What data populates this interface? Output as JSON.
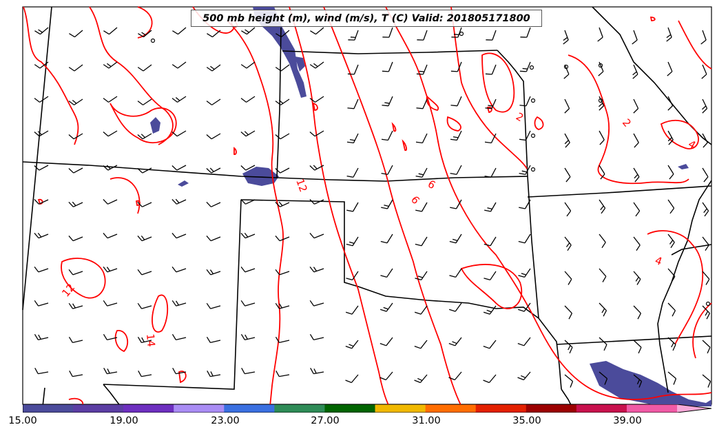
{
  "title": "500 mb height (m), wind (m/s), T (C) Valid: 201805171800",
  "colors": {
    "temperature_contour": "#ff0000",
    "state_borders": "#000000",
    "wind_barbs": "#000000",
    "wind_fill": "#4b4b9b"
  },
  "contour_labels": [
    "0",
    "2",
    "2",
    "4",
    "4",
    "6",
    "6",
    "12",
    "12",
    "14"
  ],
  "colorbar": {
    "min": 15.0,
    "max": 43.0,
    "step": 2.0,
    "extend": "max",
    "tick_labels": [
      "15.00",
      "19.00",
      "23.00",
      "27.00",
      "31.00",
      "35.00",
      "39.00"
    ],
    "colors": [
      "#4b4b9b",
      "#5b3da3",
      "#6d2fbf",
      "#a98cf4",
      "#3a6fe0",
      "#2e8b57",
      "#006400",
      "#f0b800",
      "#ff6d00",
      "#e32000",
      "#9b0000",
      "#c8104d",
      "#f05aa5",
      "#f7a8d8"
    ]
  }
}
